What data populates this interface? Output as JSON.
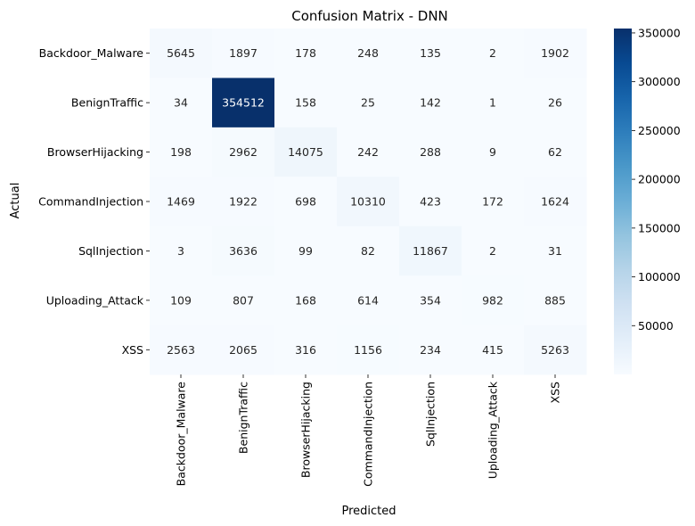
{
  "chart_data": {
    "type": "heatmap",
    "title": "Confusion Matrix - DNN",
    "xlabel": "Predicted",
    "ylabel": "Actual",
    "x_categories": [
      "Backdoor_Malware",
      "BenignTraffic",
      "BrowserHijacking",
      "CommandInjection",
      "SqlInjection",
      "Uploading_Attack",
      "XSS"
    ],
    "y_categories": [
      "Backdoor_Malware",
      "BenignTraffic",
      "BrowserHijacking",
      "CommandInjection",
      "SqlInjection",
      "Uploading_Attack",
      "XSS"
    ],
    "values": [
      [
        5645,
        1897,
        178,
        248,
        135,
        2,
        1902
      ],
      [
        34,
        354512,
        158,
        25,
        142,
        1,
        26
      ],
      [
        198,
        2962,
        14075,
        242,
        288,
        9,
        62
      ],
      [
        1469,
        1922,
        698,
        10310,
        423,
        172,
        1624
      ],
      [
        3,
        3636,
        99,
        82,
        11867,
        2,
        31
      ],
      [
        109,
        807,
        168,
        614,
        354,
        982,
        885
      ],
      [
        2563,
        2065,
        316,
        1156,
        234,
        415,
        5263
      ]
    ],
    "colormap": "Blues",
    "colorbar": {
      "range": [
        1,
        354512
      ],
      "ticks": [
        50000,
        100000,
        150000,
        200000,
        250000,
        300000,
        350000
      ],
      "tick_labels": [
        "50000",
        "100000",
        "150000",
        "200000",
        "250000",
        "300000",
        "350000"
      ]
    },
    "colors": {
      "low": "#f7fbff",
      "high": "#08306b",
      "text_dark": "#262626",
      "text_light": "#ffffff"
    }
  }
}
